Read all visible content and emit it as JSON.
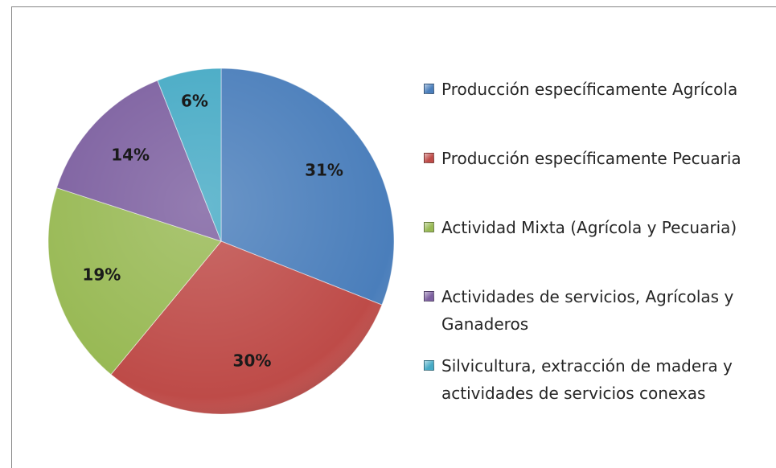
{
  "chart_data": {
    "type": "pie",
    "categories": [
      "Producción específicamente Agrícola",
      "Producción específicamente Pecuaria",
      "Actividad Mixta (Agrícola y Pecuaria)",
      "Actividades de servicios, Agrícolas y Ganaderos",
      "Silvicultura, extracción de madera y actividades de servicios conexas"
    ],
    "values": [
      31,
      30,
      19,
      14,
      6
    ],
    "value_labels": [
      "31%",
      "30%",
      "19%",
      "14%",
      "6%"
    ],
    "colors": [
      "#4a7ebb",
      "#be4b48",
      "#98b954",
      "#7d60a0",
      "#46aac5"
    ],
    "legend": "right"
  }
}
